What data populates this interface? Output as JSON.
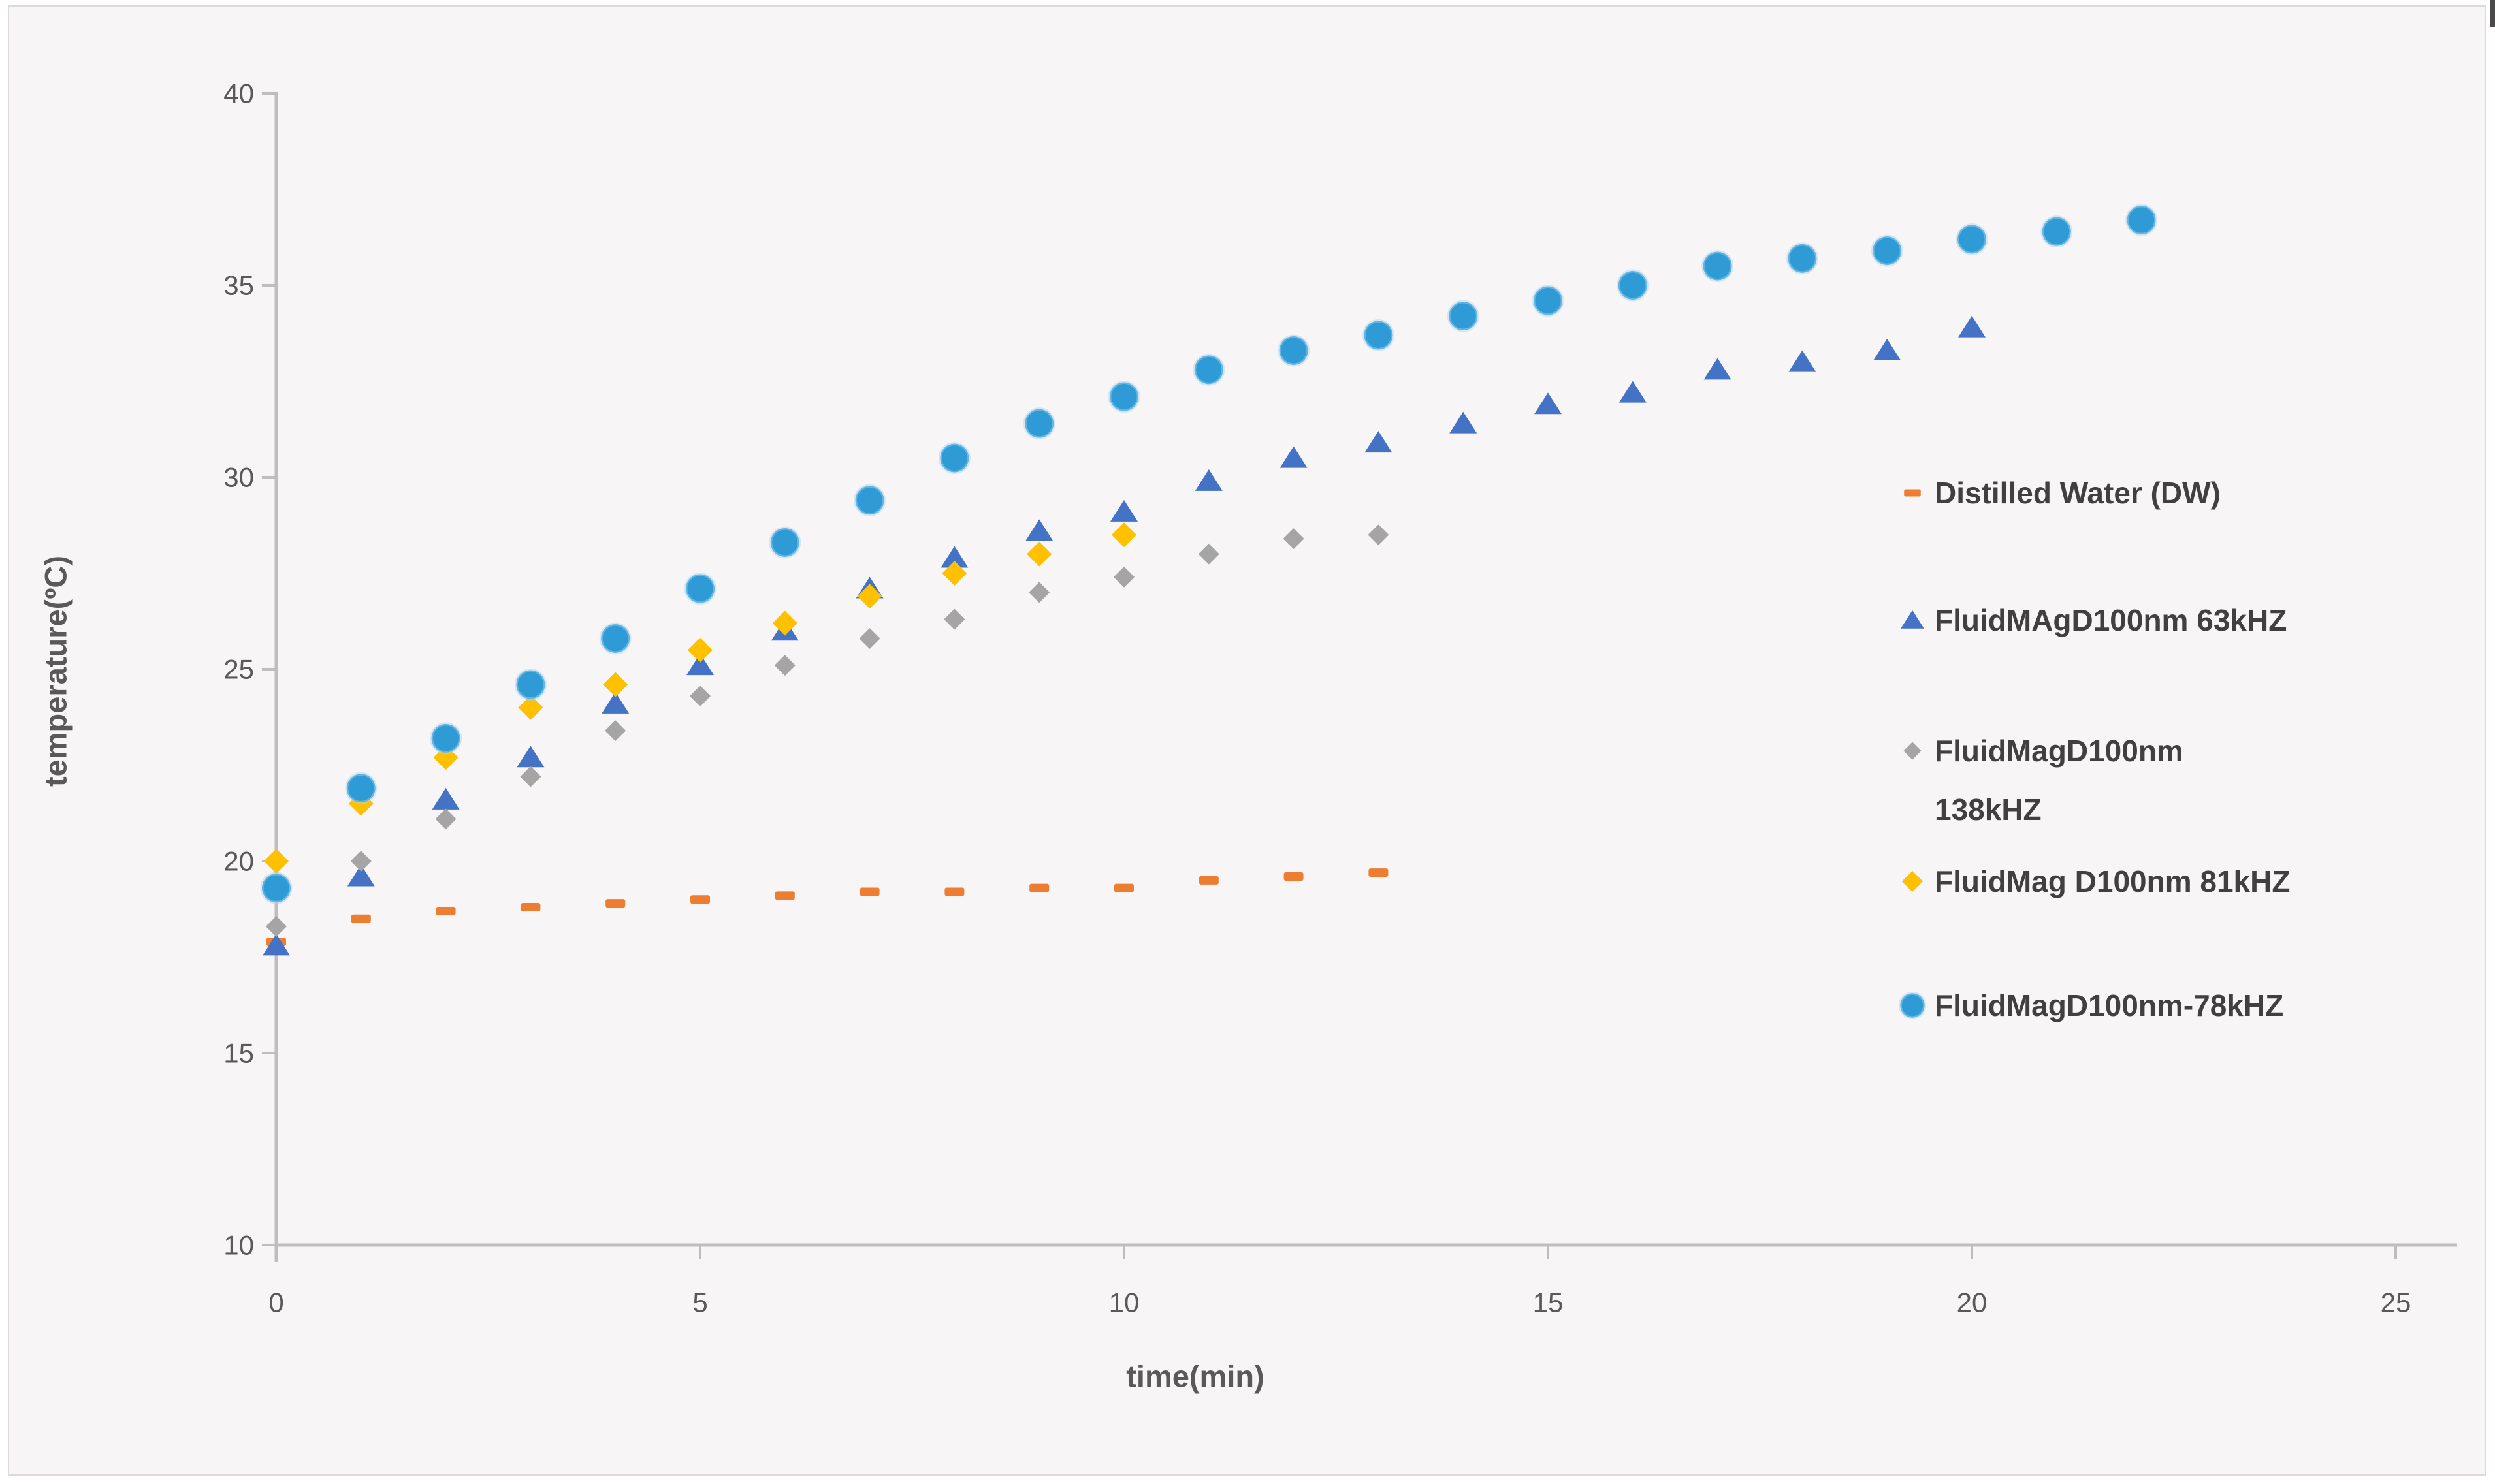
{
  "chart_data": {
    "type": "scatter",
    "xlabel": "time(min)",
    "ylabel": "temperature(ºC)",
    "xlim": [
      0,
      25
    ],
    "ylim": [
      10,
      40
    ],
    "x_ticks": [
      0,
      5,
      10,
      15,
      20,
      25
    ],
    "y_ticks": [
      10,
      15,
      20,
      25,
      30,
      35,
      40
    ],
    "grid": "off",
    "legend_position": "right",
    "series": [
      {
        "name": "Distilled Water (DW)",
        "marker": "dash",
        "color": "#ED7D31",
        "x": [
          0,
          1,
          2,
          3,
          4,
          5,
          6,
          7,
          8,
          9,
          10,
          11,
          12,
          13
        ],
        "y": [
          17.9,
          18.5,
          18.7,
          18.8,
          18.9,
          19.0,
          19.1,
          19.2,
          19.2,
          19.3,
          19.3,
          19.5,
          19.6,
          19.7
        ]
      },
      {
        "name": "FluidMAgD100nm 63kHZ",
        "marker": "triangle",
        "color": "#4472C4",
        "x": [
          0,
          1,
          2,
          3,
          4,
          5,
          6,
          7,
          8,
          9,
          10,
          11,
          12,
          13,
          14,
          15,
          16,
          17,
          18,
          19,
          20
        ],
        "y": [
          17.8,
          19.6,
          21.6,
          22.7,
          24.1,
          25.1,
          26.0,
          27.1,
          27.9,
          28.6,
          29.1,
          29.9,
          30.5,
          30.9,
          31.4,
          31.9,
          32.2,
          32.8,
          33.0,
          33.3,
          33.9
        ]
      },
      {
        "name": "FluidMagD100nm 138kHZ",
        "marker": "diamond",
        "color": "#A5A5A5",
        "x": [
          0,
          1,
          2,
          3,
          4,
          5,
          6,
          7,
          8,
          9,
          10,
          11,
          12,
          13
        ],
        "y": [
          18.3,
          20.0,
          21.1,
          22.2,
          23.4,
          24.3,
          25.1,
          25.8,
          26.3,
          27.0,
          27.4,
          28.0,
          28.4,
          28.5
        ]
      },
      {
        "name": "FluidMag D100nm 81kHZ",
        "marker": "diamond",
        "color": "#FFC000",
        "x": [
          0,
          1,
          2,
          3,
          4,
          5,
          6,
          7,
          8,
          9,
          10
        ],
        "y": [
          20.0,
          21.5,
          22.7,
          24.0,
          24.6,
          25.5,
          26.2,
          26.9,
          27.5,
          28.0,
          28.5
        ]
      },
      {
        "name": "FluidMagD100nm-78kHZ",
        "marker": "circle",
        "color": "#2E9BD6",
        "x": [
          0,
          1,
          2,
          3,
          4,
          5,
          6,
          7,
          8,
          9,
          10,
          11,
          12,
          13,
          14,
          15,
          16,
          17,
          18,
          19,
          20,
          21,
          22
        ],
        "y": [
          19.3,
          21.9,
          23.2,
          24.6,
          25.8,
          27.1,
          28.3,
          29.4,
          30.5,
          31.4,
          32.1,
          32.8,
          33.3,
          33.7,
          34.2,
          34.6,
          35.0,
          35.5,
          35.7,
          35.9,
          36.2,
          36.4,
          36.7
        ]
      }
    ]
  },
  "legend": {
    "items": [
      {
        "lines": [
          "Distilled Water (DW)"
        ]
      },
      {
        "lines": [
          "FluidMAgD100nm 63kHZ"
        ]
      },
      {
        "lines": [
          "FluidMagD100nm",
          "138kHZ"
        ]
      },
      {
        "lines": [
          "FluidMag D100nm 81kHZ"
        ]
      },
      {
        "lines": [
          "FluidMagD100nm-78kHZ"
        ]
      }
    ]
  },
  "colors": {
    "plot_background": "#F8F5F7",
    "frame_border": "#DDD9DC",
    "axis_line": "#BFBDBF",
    "tick_text": "#595959",
    "legend_text": "#404040",
    "series_orange": "#ED7D31",
    "series_blue_triangle": "#4472C4",
    "series_gray": "#A5A5A5",
    "series_gold": "#FFC000",
    "series_blue_circle": "#2E9BD6"
  }
}
